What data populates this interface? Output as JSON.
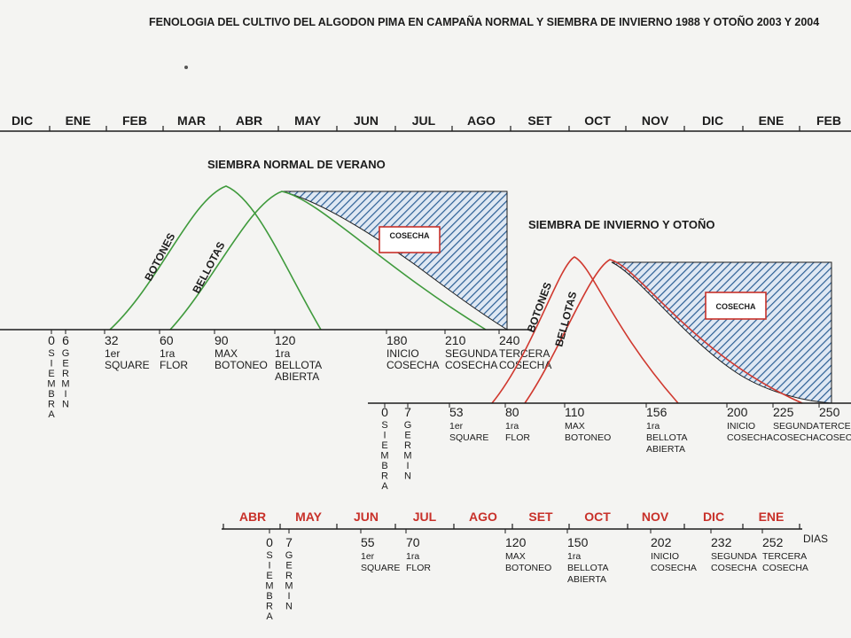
{
  "title": "FENOLOGIA DEL CULTIVO DEL ALGODON PIMA EN CAMPAÑA NORMAL Y SIEMBRA DE INVIERNO 1988 Y OTOÑO 2003 Y 2004",
  "top_months": [
    "DIC",
    "ENE",
    "FEB",
    "MAR",
    "ABR",
    "MAY",
    "JUN",
    "JUL",
    "AGO",
    "SET",
    "OCT",
    "NOV",
    "DIC",
    "ENE",
    "FEB"
  ],
  "normal": {
    "heading": "SIEMBRA NORMAL DE VERANO",
    "botones_label": "BOTONES",
    "bellotas_label": "BELLOTAS",
    "cosecha_label": "COSECHA",
    "stages": [
      {
        "day": "0",
        "vertical": "SIEMBRA"
      },
      {
        "day": "6",
        "vertical": "GERMIN"
      },
      {
        "day": "32",
        "line1": "1er",
        "line2": "SQUARE"
      },
      {
        "day": "60",
        "line1": "1ra",
        "line2": "FLOR"
      },
      {
        "day": "90",
        "line1": "MAX",
        "line2": "BOTONEO"
      },
      {
        "day": "120",
        "line1": "1ra",
        "line2": "BELLOTA",
        "line3": "ABIERTA"
      },
      {
        "day": "180",
        "line1": "INICIO",
        "line2": "COSECHA"
      },
      {
        "day": "210",
        "line1": "SEGUNDA",
        "line2": "COSECHA"
      },
      {
        "day": "240",
        "line1": "TERCERA",
        "line2": "COSECHA"
      }
    ]
  },
  "winter": {
    "heading": "SIEMBRA  DE INVIERNO Y OTOÑO",
    "botones_label": "BOTONES",
    "bellotas_label": "BELLOTAS",
    "cosecha_label": "COSECHA",
    "stages": [
      {
        "day": "0",
        "vertical": "SIEMBRA"
      },
      {
        "day": "7",
        "vertical": "GERMIN"
      },
      {
        "day": "53",
        "line1": "1er",
        "line2": "SQUARE"
      },
      {
        "day": "80",
        "line1": "1ra",
        "line2": "FLOR"
      },
      {
        "day": "110",
        "line1": "MAX",
        "line2": "BOTONEO"
      },
      {
        "day": "156",
        "line1": "1ra",
        "line2": "BELLOTA",
        "line3": "ABIERTA"
      },
      {
        "day": "200",
        "line1": "INICIO",
        "line2": "COSECHA"
      },
      {
        "day": "225",
        "line1": "SEGUNDA",
        "line2": "COSECHA"
      },
      {
        "day": "250",
        "line1": "TERCERA",
        "line2": "COSECHA"
      }
    ]
  },
  "bottom": {
    "months": [
      "ABR",
      "MAY",
      "JUN",
      "JUL",
      "AGO",
      "SET",
      "OCT",
      "NOV",
      "DIC",
      "ENE"
    ],
    "dias_label": "DIAS",
    "stages": [
      {
        "day": "0",
        "vertical": "SIEMBRA"
      },
      {
        "day": "7",
        "vertical": "GERMIN"
      },
      {
        "day": "55",
        "line1": "1er",
        "line2": "SQUARE"
      },
      {
        "day": "70",
        "line1": "1ra",
        "line2": "FLOR"
      },
      {
        "day": "120",
        "line1": "MAX",
        "line2": "BOTONEO"
      },
      {
        "day": "150",
        "line1": "1ra",
        "line2": "BELLOTA",
        "line3": "ABIERTA"
      },
      {
        "day": "202",
        "line1": "INICIO",
        "line2": "COSECHA"
      },
      {
        "day": "232",
        "line1": "SEGUNDA",
        "line2": "COSECHA"
      },
      {
        "day": "252",
        "line1": "TERCERA",
        "line2": "COSECHA"
      }
    ]
  },
  "colors": {
    "normal_curve": "#3f9a3c",
    "winter_curve": "#d0392f",
    "hatch": "#2c5f95",
    "red_text": "#c8312a",
    "ink": "#1c1c1c"
  }
}
